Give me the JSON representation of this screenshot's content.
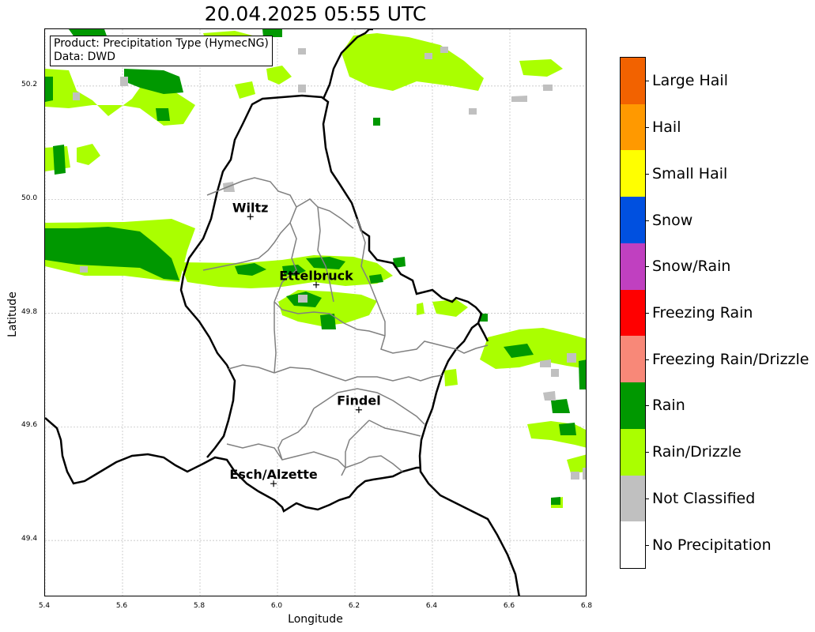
{
  "title": "20.04.2025 05:55 UTC",
  "info_box": {
    "product": "Product: Precipitation Type (HymecNG)",
    "data": "Data: DWD"
  },
  "axes": {
    "xlabel": "Longitude",
    "ylabel": "Latitude",
    "xlim": [
      5.4,
      6.8
    ],
    "ylim": [
      49.3,
      50.3
    ],
    "xticks": [
      "5.4",
      "5.6",
      "5.8",
      "6.0",
      "6.2",
      "6.4",
      "6.6",
      "6.8"
    ],
    "yticks": [
      "49.4",
      "49.6",
      "49.8",
      "50.0",
      "50.2"
    ]
  },
  "cities": [
    {
      "name": "Wiltz",
      "lon": 5.93,
      "lat": 49.97
    },
    {
      "name": "Ettelbruck",
      "lon": 6.1,
      "lat": 49.85
    },
    {
      "name": "Findel",
      "lon": 6.21,
      "lat": 49.63
    },
    {
      "name": "Esch/Alzette",
      "lon": 5.99,
      "lat": 49.5
    }
  ],
  "legend": [
    {
      "label": "Large Hail",
      "color": "#f26200"
    },
    {
      "label": "Hail",
      "color": "#ff9900"
    },
    {
      "label": "Small Hail",
      "color": "#ffff00"
    },
    {
      "label": "Snow",
      "color": "#0050e0"
    },
    {
      "label": "Snow/Rain",
      "color": "#c040c0"
    },
    {
      "label": "Freezing Rain",
      "color": "#ff0000"
    },
    {
      "label": "Freezing Rain/Drizzle",
      "color": "#f88878"
    },
    {
      "label": "Rain",
      "color": "#009800"
    },
    {
      "label": "Rain/Drizzle",
      "color": "#aaff00"
    },
    {
      "label": "Not Classified",
      "color": "#c0c0c0"
    },
    {
      "label": "No Precipitation",
      "color": "#ffffff"
    }
  ]
}
